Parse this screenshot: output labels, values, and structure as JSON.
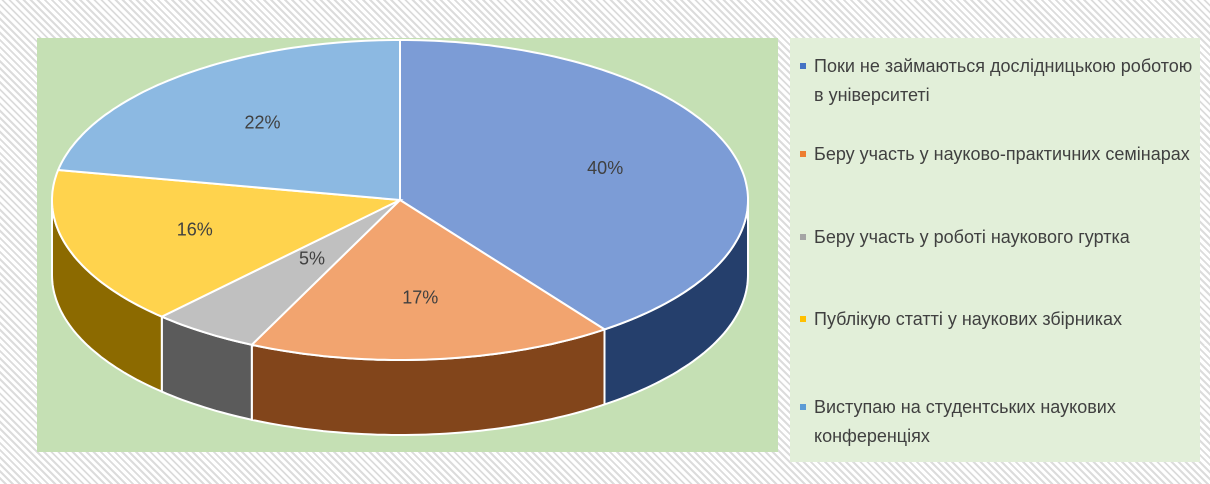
{
  "chart_data": {
    "type": "pie3d",
    "categories": [
      "Поки не займаються дослідницькою роботою в університеті",
      "Беру участь у науково-практичних семінарах",
      "Беру участь у роботі наукового гуртка",
      "Публікую статті у наукових збірниках",
      "Виступаю на студентських наукових конференціях"
    ],
    "values": [
      40,
      17,
      5,
      16,
      22
    ],
    "value_labels": [
      "40%",
      "17%",
      "5%",
      "16%",
      "22%"
    ],
    "colors": [
      "#4472c4",
      "#ed7d31",
      "#a5a5a5",
      "#ffc000",
      "#5b9bd5"
    ],
    "legend": "right"
  }
}
